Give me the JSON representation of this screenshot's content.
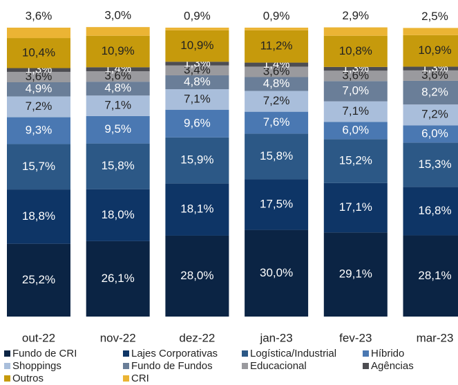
{
  "chart_data": {
    "type": "stacked_bar",
    "categories": [
      "out-22",
      "nov-22",
      "dez-22",
      "jan-23",
      "fev-23",
      "mar-23"
    ],
    "ylim": [
      0,
      100
    ],
    "series": [
      {
        "name": "Fundo de CRI",
        "color": "#0b2444",
        "values": [
          25.2,
          26.1,
          28.0,
          30.0,
          29.1,
          28.1
        ],
        "value_labels": [
          "25,2%",
          "26,1%",
          "28,0%",
          "30,0%",
          "29,1%",
          "28,1%"
        ]
      },
      {
        "name": "Lajes Corporativas",
        "color": "#0e3566",
        "values": [
          18.8,
          18.0,
          18.1,
          17.5,
          17.1,
          16.8
        ],
        "value_labels": [
          "18,8%",
          "18,0%",
          "18,1%",
          "17,5%",
          "17,1%",
          "16,8%"
        ]
      },
      {
        "name": "Logística/Industrial",
        "color": "#2c5886",
        "values": [
          15.7,
          15.8,
          15.9,
          15.8,
          15.2,
          15.3
        ],
        "value_labels": [
          "15,7%",
          "15,8%",
          "15,9%",
          "15,8%",
          "15,2%",
          "15,3%"
        ]
      },
      {
        "name": "Híbrido",
        "color": "#4a78b2",
        "values": [
          9.3,
          9.5,
          9.6,
          7.6,
          6.0,
          6.0
        ],
        "value_labels": [
          "9,3%",
          "9,5%",
          "9,6%",
          "7,6%",
          "6,0%",
          "6,0%"
        ]
      },
      {
        "name": "Shoppings",
        "color": "#a9bedb",
        "values": [
          7.2,
          7.1,
          7.1,
          7.2,
          7.1,
          7.2
        ],
        "value_labels": [
          "7,2%",
          "7,1%",
          "7,1%",
          "7,2%",
          "7,1%",
          "7,2%"
        ]
      },
      {
        "name": "Fundo de Fundos",
        "color": "#6a7e98",
        "values": [
          4.9,
          4.8,
          4.8,
          4.8,
          7.0,
          8.2
        ],
        "value_labels": [
          "4,9%",
          "4,8%",
          "4,8%",
          "4,8%",
          "7,0%",
          "8,2%"
        ]
      },
      {
        "name": "Educacional",
        "color": "#9a9a9e",
        "values": [
          3.6,
          3.6,
          3.4,
          3.6,
          3.6,
          3.6
        ],
        "value_labels": [
          "3,6%",
          "3,6%",
          "3,4%",
          "3,6%",
          "3,6%",
          "3,6%"
        ]
      },
      {
        "name": "Agências",
        "color": "#4d4d52",
        "values": [
          1.3,
          1.4,
          1.3,
          1.4,
          1.3,
          1.3
        ],
        "value_labels": [
          "1,3%",
          "1,4%",
          "1,3%",
          "1,4%",
          "1,3%",
          "1,3%"
        ]
      },
      {
        "name": "Outros",
        "color": "#c69a0c",
        "values": [
          10.4,
          10.9,
          10.9,
          11.2,
          10.8,
          10.9
        ],
        "value_labels": [
          "10,4%",
          "10,9%",
          "10,9%",
          "11,2%",
          "10,8%",
          "10,9%"
        ]
      },
      {
        "name": "CRI",
        "color": "#ebb434",
        "values": [
          3.6,
          3.0,
          0.9,
          0.9,
          2.9,
          2.5
        ],
        "value_labels": [
          "3,6%",
          "3,0%",
          "0,9%",
          "0,9%",
          "2,9%",
          "2,5%"
        ]
      }
    ]
  }
}
